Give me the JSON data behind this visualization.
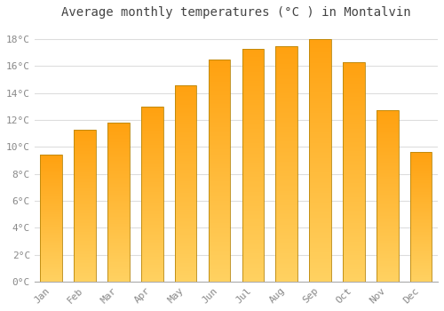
{
  "title": "Average monthly temperatures (°C ) in Montalvin",
  "months": [
    "Jan",
    "Feb",
    "Mar",
    "Apr",
    "May",
    "Jun",
    "Jul",
    "Aug",
    "Sep",
    "Oct",
    "Nov",
    "Dec"
  ],
  "values": [
    9.4,
    11.3,
    11.8,
    13.0,
    14.6,
    16.5,
    17.3,
    17.5,
    18.0,
    16.3,
    12.7,
    9.6
  ],
  "ylim": [
    0,
    19
  ],
  "yticks": [
    0,
    2,
    4,
    6,
    8,
    10,
    12,
    14,
    16,
    18
  ],
  "ytick_labels": [
    "0°C",
    "2°C",
    "4°C",
    "6°C",
    "8°C",
    "10°C",
    "12°C",
    "14°C",
    "16°C",
    "18°C"
  ],
  "background_color": "#FFFFFF",
  "grid_color": "#DDDDDD",
  "title_fontsize": 10,
  "tick_fontsize": 8,
  "bar_color_center": "#FFD060",
  "bar_color_edge": "#FFA000",
  "bar_border_color": "#B8860B"
}
